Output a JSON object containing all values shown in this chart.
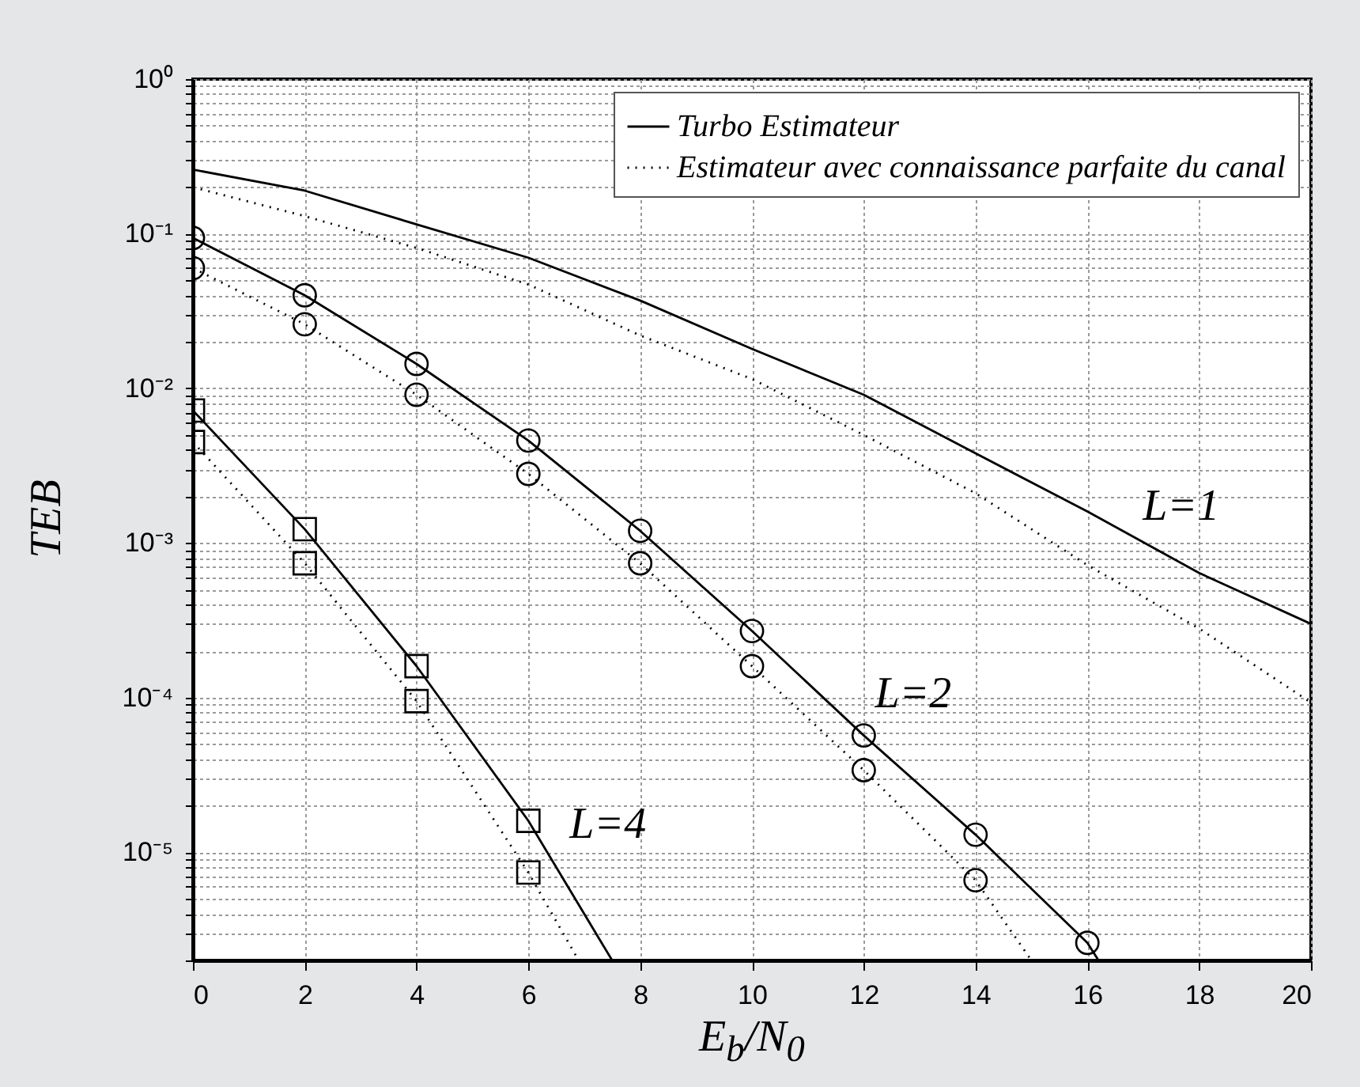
{
  "chart_data": {
    "type": "line",
    "xlabel": "E$_{b}$/N$_{0}$",
    "ylabel": "TEB",
    "log": "y",
    "grid": true,
    "legend": "top right",
    "xlim": [
      0,
      20
    ],
    "xticks": [
      0,
      2,
      4,
      6,
      8,
      10,
      12,
      14,
      16,
      18,
      20
    ],
    "ylim": [
      2e-06,
      1
    ],
    "yticks": [
      {
        "value": 2e-06,
        "label": null
      },
      {
        "value": 3e-06,
        "label": null
      },
      {
        "value": 4e-06,
        "label": null
      },
      {
        "value": 5e-06,
        "label": null
      },
      {
        "value": 6e-06,
        "label": null
      },
      {
        "value": 7e-06,
        "label": null
      },
      {
        "value": 8e-06,
        "label": null
      },
      {
        "value": 9e-06,
        "label": null
      },
      {
        "value": 1e-05,
        "label": "10⁻⁵"
      },
      {
        "value": 2e-05,
        "label": null
      },
      {
        "value": 3e-05,
        "label": null
      },
      {
        "value": 4e-05,
        "label": null
      },
      {
        "value": 5e-05,
        "label": null
      },
      {
        "value": 6e-05,
        "label": null
      },
      {
        "value": 7e-05,
        "label": null
      },
      {
        "value": 8e-05,
        "label": null
      },
      {
        "value": 9e-05,
        "label": null
      },
      {
        "value": 0.0001,
        "label": "10⁻⁴"
      },
      {
        "value": 0.0002,
        "label": null
      },
      {
        "value": 0.0003,
        "label": null
      },
      {
        "value": 0.0004,
        "label": null
      },
      {
        "value": 0.0005,
        "label": null
      },
      {
        "value": 0.0006,
        "label": null
      },
      {
        "value": 0.0007,
        "label": null
      },
      {
        "value": 0.0008,
        "label": null
      },
      {
        "value": 0.0009,
        "label": null
      },
      {
        "value": 0.001,
        "label": "10⁻³"
      },
      {
        "value": 0.002,
        "label": null
      },
      {
        "value": 0.003,
        "label": null
      },
      {
        "value": 0.004,
        "label": null
      },
      {
        "value": 0.005,
        "label": null
      },
      {
        "value": 0.006,
        "label": null
      },
      {
        "value": 0.007,
        "label": null
      },
      {
        "value": 0.008,
        "label": null
      },
      {
        "value": 0.009,
        "label": null
      },
      {
        "value": 0.01,
        "label": "10⁻²"
      },
      {
        "value": 0.02,
        "label": null
      },
      {
        "value": 0.03,
        "label": null
      },
      {
        "value": 0.04,
        "label": null
      },
      {
        "value": 0.05,
        "label": null
      },
      {
        "value": 0.06,
        "label": null
      },
      {
        "value": 0.07,
        "label": null
      },
      {
        "value": 0.08,
        "label": null
      },
      {
        "value": 0.09,
        "label": null
      },
      {
        "value": 0.1,
        "label": "10⁻¹"
      },
      {
        "value": 0.2,
        "label": null
      },
      {
        "value": 0.3,
        "label": null
      },
      {
        "value": 0.4,
        "label": null
      },
      {
        "value": 0.5,
        "label": null
      },
      {
        "value": 0.6,
        "label": null
      },
      {
        "value": 0.7,
        "label": null
      },
      {
        "value": 0.8,
        "label": null
      },
      {
        "value": 0.9,
        "label": null
      },
      {
        "value": 1,
        "label": "10⁰"
      }
    ],
    "series": [
      {
        "name": "Turbo Estimateur",
        "line_style": "solid",
        "marker": "none",
        "color": "#000000",
        "x": [
          0,
          2,
          4,
          6,
          8,
          10,
          12,
          14,
          16,
          18,
          20
        ],
        "values": [
          0.26,
          0.19,
          0.115,
          0.07,
          0.037,
          0.018,
          0.0091,
          0.0038,
          0.0016,
          0.00064,
          0.0003
        ]
      },
      {
        "name": "Estimateur avec connaissance parfaite du canal",
        "line_style": "dotted",
        "marker": "none",
        "color": "#000000",
        "x": [
          0,
          2,
          4,
          6,
          8,
          10,
          12,
          14,
          16,
          18,
          20
        ],
        "values": [
          0.2,
          0.13,
          0.081,
          0.047,
          0.022,
          0.0115,
          0.005,
          0.0021,
          0.00072,
          0.00028,
          9.3e-05
        ]
      },
      {
        "line_style": "solid",
        "marker": "none",
        "color": "#000000",
        "x": [
          0,
          2,
          4,
          6,
          8,
          10,
          12,
          14,
          16,
          16.2
        ],
        "values": [
          0.094,
          0.04,
          0.0144,
          0.0046,
          0.0012,
          0.00027,
          5.7e-05,
          1.3e-05,
          2.6e-06,
          2e-06
        ]
      },
      {
        "type": "scatter",
        "marker": "circle",
        "color": "#000000",
        "x": [
          0,
          2,
          4,
          6,
          8,
          10,
          12,
          14,
          16
        ],
        "values": [
          0.094,
          0.04,
          0.0144,
          0.0046,
          0.0012,
          0.00027,
          5.7e-05,
          1.3e-05,
          2.6e-06
        ]
      },
      {
        "line_style": "dotted",
        "marker": "none",
        "color": "#000000",
        "x": [
          0,
          2,
          4,
          6,
          8,
          10,
          12,
          14,
          15
        ],
        "values": [
          0.06,
          0.026,
          0.0091,
          0.0028,
          0.00074,
          0.00016,
          3.4e-05,
          6.6e-06,
          2e-06
        ]
      },
      {
        "type": "scatter",
        "marker": "circle",
        "color": "#000000",
        "x": [
          0,
          2,
          4,
          6,
          8,
          10,
          12,
          14
        ],
        "values": [
          0.06,
          0.026,
          0.0091,
          0.0028,
          0.00074,
          0.00016,
          3.4e-05,
          6.6e-06
        ]
      },
      {
        "line_style": "solid",
        "marker": "none",
        "color": "#000000",
        "x": [
          0,
          2,
          4,
          6,
          7.5
        ],
        "values": [
          0.0072,
          0.00123,
          0.00016,
          1.6e-05,
          2e-06
        ]
      },
      {
        "type": "scatter",
        "marker": "square",
        "color": "#000000",
        "x": [
          0,
          2,
          4,
          6
        ],
        "values": [
          0.0072,
          0.00123,
          0.00016,
          1.6e-05
        ]
      },
      {
        "line_style": "dotted",
        "marker": "none",
        "color": "#000000",
        "x": [
          0,
          2,
          4,
          6,
          6.9
        ],
        "values": [
          0.0045,
          0.00074,
          9.5e-05,
          7.4e-06,
          2e-06
        ]
      },
      {
        "type": "scatter",
        "marker": "square",
        "color": "#000000",
        "x": [
          0,
          2,
          4,
          6
        ],
        "values": [
          0.0045,
          0.00074,
          9.5e-05,
          7.4e-06
        ]
      }
    ],
    "annotations": [
      {
        "text": "L=1",
        "x": 16,
        "y": 0.0016
      },
      {
        "text": "L=2",
        "x": 12,
        "y": 5.7e-05
      },
      {
        "text": "L=4",
        "x": 6,
        "y": 1.6e-05
      }
    ]
  }
}
